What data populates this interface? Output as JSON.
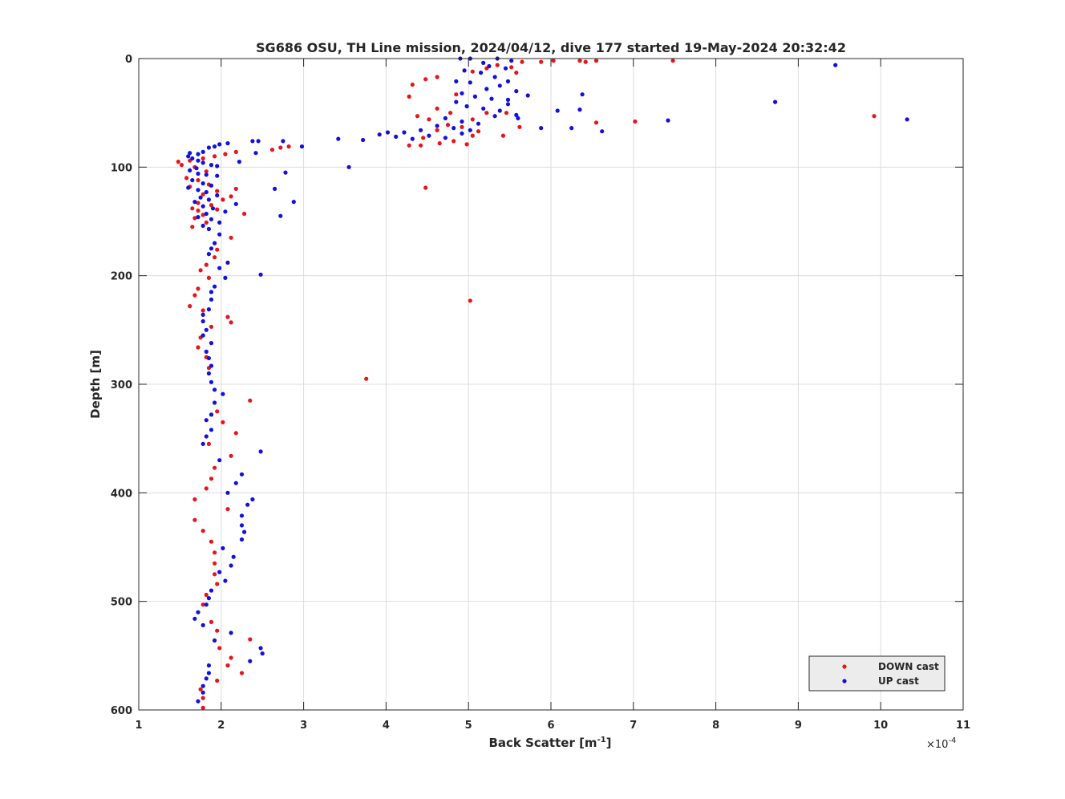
{
  "chart_data": {
    "type": "scatter",
    "title": "SG686 OSU, TH Line mission, 2024/04/12, dive 177 started 19-May-2024 20:32:42",
    "xlabel_main": "Back Scatter [m",
    "xlabel_sup": "-1",
    "xlabel_close": "]",
    "ylabel": "Depth [m]",
    "x_multiplier_base": "×10",
    "x_multiplier_exp": "-4",
    "xlim": [
      1,
      11
    ],
    "ylim": [
      0,
      600
    ],
    "y_reversed": true,
    "grid": true,
    "legend_placement": "bottom-right",
    "x_ticks": [
      "1",
      "2",
      "3",
      "4",
      "5",
      "6",
      "7",
      "8",
      "9",
      "10",
      "11"
    ],
    "y_ticks": [
      "0",
      "100",
      "200",
      "300",
      "400",
      "500",
      "600"
    ],
    "series": [
      {
        "name": "DOWN cast",
        "color": "#e8141a",
        "points": [
          [
            7.48,
            2
          ],
          [
            6.55,
            2
          ],
          [
            6.42,
            3
          ],
          [
            6.03,
            2
          ],
          [
            5.88,
            3
          ],
          [
            5.65,
            3
          ],
          [
            6.35,
            2
          ],
          [
            5.52,
            8
          ],
          [
            5.35,
            6
          ],
          [
            5.22,
            9
          ],
          [
            5.58,
            13
          ],
          [
            5.05,
            12
          ],
          [
            4.62,
            17
          ],
          [
            4.48,
            19
          ],
          [
            4.32,
            24
          ],
          [
            4.28,
            35
          ],
          [
            4.85,
            33
          ],
          [
            4.62,
            46
          ],
          [
            4.38,
            53
          ],
          [
            4.52,
            56
          ],
          [
            4.78,
            50
          ],
          [
            5.22,
            50
          ],
          [
            5.46,
            50
          ],
          [
            5.05,
            56
          ],
          [
            4.75,
            61
          ],
          [
            4.92,
            63
          ],
          [
            5.12,
            67
          ],
          [
            5.05,
            71
          ],
          [
            4.62,
            66
          ],
          [
            4.45,
            73
          ],
          [
            4.28,
            80
          ],
          [
            4.42,
            80
          ],
          [
            4.65,
            78
          ],
          [
            4.82,
            76
          ],
          [
            4.98,
            79
          ],
          [
            5.42,
            71
          ],
          [
            5.62,
            63
          ],
          [
            6.55,
            59
          ],
          [
            7.02,
            58
          ],
          [
            9.92,
            53
          ],
          [
            4.48,
            119
          ],
          [
            5.02,
            223
          ],
          [
            3.76,
            295
          ],
          [
            2.82,
            81
          ],
          [
            2.72,
            82
          ],
          [
            2.62,
            84
          ],
          [
            2.18,
            86
          ],
          [
            2.05,
            88
          ],
          [
            1.92,
            90
          ],
          [
            1.78,
            92
          ],
          [
            1.62,
            94
          ],
          [
            1.48,
            95
          ],
          [
            1.52,
            98
          ],
          [
            1.68,
            100
          ],
          [
            1.82,
            104
          ],
          [
            1.58,
            110
          ],
          [
            1.72,
            112
          ],
          [
            1.85,
            116
          ],
          [
            1.62,
            118
          ],
          [
            2.18,
            120
          ],
          [
            1.95,
            122
          ],
          [
            1.78,
            125
          ],
          [
            2.12,
            127
          ],
          [
            2.02,
            130
          ],
          [
            1.72,
            133
          ],
          [
            1.88,
            135
          ],
          [
            2.28,
            143
          ],
          [
            1.65,
            138
          ],
          [
            1.95,
            139
          ],
          [
            1.72,
            140
          ],
          [
            1.78,
            144
          ],
          [
            1.68,
            147
          ],
          [
            1.82,
            151
          ],
          [
            1.65,
            155
          ],
          [
            2.12,
            165
          ],
          [
            1.95,
            176
          ],
          [
            1.92,
            183
          ],
          [
            1.82,
            190
          ],
          [
            1.75,
            195
          ],
          [
            1.85,
            202
          ],
          [
            1.72,
            212
          ],
          [
            1.68,
            218
          ],
          [
            1.62,
            228
          ],
          [
            1.78,
            232
          ],
          [
            2.08,
            238
          ],
          [
            2.12,
            243
          ],
          [
            1.88,
            247
          ],
          [
            1.75,
            257
          ],
          [
            1.72,
            266
          ],
          [
            1.82,
            275
          ],
          [
            1.85,
            285
          ],
          [
            2.35,
            315
          ],
          [
            1.95,
            325
          ],
          [
            2.02,
            335
          ],
          [
            2.18,
            345
          ],
          [
            1.85,
            355
          ],
          [
            2.12,
            366
          ],
          [
            1.92,
            377
          ],
          [
            1.88,
            387
          ],
          [
            1.82,
            396
          ],
          [
            1.68,
            406
          ],
          [
            2.08,
            415
          ],
          [
            1.68,
            425
          ],
          [
            1.78,
            435
          ],
          [
            1.88,
            445
          ],
          [
            1.92,
            455
          ],
          [
            1.92,
            465
          ],
          [
            1.92,
            475
          ],
          [
            1.95,
            484
          ],
          [
            1.82,
            494
          ],
          [
            1.78,
            503
          ],
          [
            1.88,
            519
          ],
          [
            1.95,
            527
          ],
          [
            2.35,
            535
          ],
          [
            1.98,
            543
          ],
          [
            2.12,
            552
          ],
          [
            2.08,
            559
          ],
          [
            2.25,
            566
          ],
          [
            1.95,
            573
          ],
          [
            1.75,
            581
          ],
          [
            1.78,
            589
          ],
          [
            1.78,
            598
          ]
        ]
      },
      {
        "name": "UP cast",
        "color": "#1010e0",
        "points": [
          [
            9.45,
            6
          ],
          [
            8.72,
            40
          ],
          [
            10.32,
            56
          ],
          [
            7.42,
            57
          ],
          [
            6.62,
            67
          ],
          [
            6.25,
            64
          ],
          [
            6.38,
            33
          ],
          [
            6.35,
            47
          ],
          [
            6.08,
            48
          ],
          [
            5.88,
            64
          ],
          [
            5.72,
            34
          ],
          [
            5.6,
            55
          ],
          [
            5.48,
            38
          ],
          [
            4.9,
            0
          ],
          [
            5.02,
            0
          ],
          [
            5.35,
            0
          ],
          [
            5.52,
            2
          ],
          [
            5.18,
            4
          ],
          [
            5.25,
            7
          ],
          [
            5.45,
            9
          ],
          [
            4.95,
            11
          ],
          [
            5.15,
            13
          ],
          [
            5.32,
            17
          ],
          [
            5.48,
            21
          ],
          [
            4.85,
            21
          ],
          [
            5.02,
            22
          ],
          [
            5.22,
            28
          ],
          [
            5.38,
            25
          ],
          [
            5.58,
            30
          ],
          [
            4.92,
            32
          ],
          [
            5.08,
            35
          ],
          [
            5.28,
            37
          ],
          [
            5.48,
            42
          ],
          [
            4.85,
            40
          ],
          [
            4.98,
            44
          ],
          [
            5.18,
            46
          ],
          [
            5.38,
            48
          ],
          [
            5.58,
            52
          ],
          [
            4.72,
            55
          ],
          [
            4.92,
            58
          ],
          [
            5.12,
            60
          ],
          [
            5.32,
            53
          ],
          [
            4.62,
            62
          ],
          [
            4.82,
            64
          ],
          [
            5.02,
            66
          ],
          [
            4.42,
            66
          ],
          [
            4.22,
            68
          ],
          [
            4.02,
            68
          ],
          [
            3.92,
            70
          ],
          [
            4.12,
            72
          ],
          [
            4.32,
            74
          ],
          [
            4.52,
            71
          ],
          [
            4.72,
            73
          ],
          [
            4.92,
            69
          ],
          [
            3.72,
            75
          ],
          [
            3.42,
            74
          ],
          [
            2.98,
            81
          ],
          [
            2.75,
            76
          ],
          [
            2.45,
            76
          ],
          [
            2.38,
            76
          ],
          [
            2.42,
            87
          ],
          [
            2.78,
            105
          ],
          [
            2.65,
            120
          ],
          [
            2.88,
            132
          ],
          [
            2.72,
            145
          ],
          [
            3.55,
            100
          ],
          [
            2.22,
            95
          ],
          [
            2.08,
            78
          ],
          [
            1.98,
            79
          ],
          [
            1.92,
            81
          ],
          [
            1.85,
            82
          ],
          [
            1.78,
            86
          ],
          [
            1.72,
            88
          ],
          [
            1.62,
            87
          ],
          [
            1.6,
            90
          ],
          [
            1.65,
            92
          ],
          [
            1.72,
            94
          ],
          [
            1.78,
            96
          ],
          [
            1.88,
            98
          ],
          [
            1.95,
            99
          ],
          [
            1.7,
            101
          ],
          [
            1.62,
            103
          ],
          [
            1.72,
            106
          ],
          [
            1.82,
            107
          ],
          [
            1.95,
            108
          ],
          [
            1.65,
            112
          ],
          [
            1.78,
            115
          ],
          [
            1.88,
            117
          ],
          [
            1.6,
            119
          ],
          [
            1.72,
            121
          ],
          [
            1.82,
            123
          ],
          [
            1.95,
            126
          ],
          [
            1.75,
            128
          ],
          [
            1.85,
            130
          ],
          [
            1.68,
            132
          ],
          [
            2.18,
            134
          ],
          [
            1.78,
            136
          ],
          [
            1.9,
            138
          ],
          [
            2.05,
            141
          ],
          [
            1.82,
            143
          ],
          [
            1.72,
            146
          ],
          [
            1.88,
            148
          ],
          [
            1.98,
            151
          ],
          [
            1.78,
            154
          ],
          [
            1.85,
            157
          ],
          [
            1.98,
            162
          ],
          [
            1.92,
            170
          ],
          [
            1.88,
            175
          ],
          [
            1.85,
            180
          ],
          [
            2.08,
            188
          ],
          [
            1.98,
            193
          ],
          [
            2.05,
            202
          ],
          [
            1.92,
            210
          ],
          [
            1.88,
            215
          ],
          [
            1.88,
            222
          ],
          [
            1.85,
            231
          ],
          [
            1.78,
            236
          ],
          [
            1.78,
            242
          ],
          [
            1.82,
            250
          ],
          [
            1.78,
            255
          ],
          [
            1.88,
            262
          ],
          [
            1.82,
            270
          ],
          [
            1.85,
            276
          ],
          [
            1.88,
            283
          ],
          [
            1.85,
            290
          ],
          [
            1.88,
            298
          ],
          [
            1.92,
            305
          ],
          [
            2.02,
            309
          ],
          [
            1.92,
            317
          ],
          [
            1.88,
            328
          ],
          [
            1.82,
            333
          ],
          [
            1.88,
            342
          ],
          [
            1.82,
            348
          ],
          [
            1.78,
            355
          ],
          [
            2.48,
            362
          ],
          [
            1.98,
            370
          ],
          [
            2.25,
            383
          ],
          [
            2.18,
            391
          ],
          [
            2.08,
            400
          ],
          [
            2.38,
            406
          ],
          [
            2.32,
            411
          ],
          [
            2.25,
            421
          ],
          [
            2.25,
            430
          ],
          [
            2.28,
            436
          ],
          [
            2.25,
            443
          ],
          [
            2.02,
            451
          ],
          [
            2.15,
            459
          ],
          [
            2.12,
            467
          ],
          [
            1.98,
            473
          ],
          [
            2.05,
            481
          ],
          [
            1.88,
            490
          ],
          [
            1.85,
            497
          ],
          [
            1.82,
            503
          ],
          [
            1.72,
            510
          ],
          [
            1.68,
            516
          ],
          [
            1.78,
            522
          ],
          [
            2.12,
            529
          ],
          [
            1.92,
            536
          ],
          [
            2.48,
            543
          ],
          [
            2.5,
            548
          ],
          [
            2.35,
            555
          ],
          [
            1.85,
            559
          ],
          [
            1.85,
            566
          ],
          [
            1.82,
            571
          ],
          [
            1.78,
            578
          ],
          [
            1.78,
            584
          ],
          [
            1.72,
            592
          ],
          [
            2.48,
            199
          ]
        ]
      }
    ]
  }
}
